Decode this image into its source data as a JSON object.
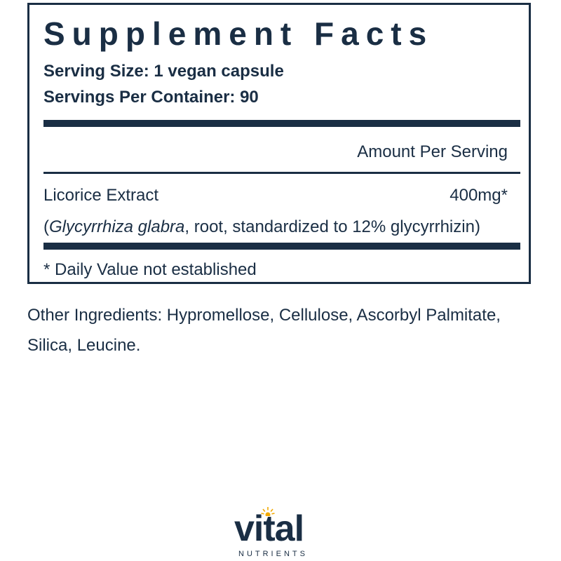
{
  "panel": {
    "title": "Supplement Facts",
    "serving_size": "Serving Size: 1 vegan capsule",
    "servings_per_container": "Servings Per Container: 90",
    "amount_header": "Amount Per Serving",
    "ingredient": {
      "name": "Licorice Extract",
      "amount": "400mg*",
      "desc_open": "(",
      "desc_latin": "Glycyrrhiza glabra",
      "desc_rest": ", root, standardized to 12% glycyrrhizin)"
    },
    "footnote": "* Daily Value not established"
  },
  "other_ingredients": "Other Ingredients:  Hypromellose, Cellulose, Ascorbyl Palmitate, Silica, Leucine.",
  "logo": {
    "word": "vital",
    "sub": "NUTRIENTS",
    "icon": "sun-icon"
  },
  "colors": {
    "text": "#1a2e44",
    "accent": "#f2a900",
    "background": "#ffffff"
  }
}
